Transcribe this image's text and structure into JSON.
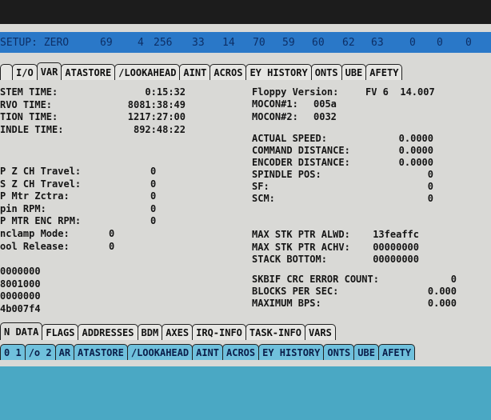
{
  "status_bar": {
    "label": "SETUP: ZERO",
    "values": [
      "69",
      "4",
      "256",
      "33",
      "14",
      "70",
      "59",
      "60",
      "62",
      "63",
      "0",
      "0",
      "0"
    ]
  },
  "top_tabs": [
    "",
    "I/O",
    "VAR",
    "ATASTORE",
    "/LOOKAHEAD",
    "AINT",
    "ACROS",
    "EY HISTORY",
    "ONTS",
    "UBE",
    "AFETY"
  ],
  "top_tabs_active": "VAR",
  "left": {
    "times": [
      {
        "label": "STEM TIME:",
        "value": "0:15:32"
      },
      {
        "label": "RVO TIME:",
        "value": "8081:38:49"
      },
      {
        "label": "TION TIME:",
        "value": "1217:27:00"
      },
      {
        "label": "INDLE TIME:",
        "value": "892:48:22"
      }
    ],
    "travel": [
      {
        "label": "P Z CH Travel:",
        "value": "0"
      },
      {
        "label": "S Z CH Travel:",
        "value": "0"
      },
      {
        "label": "P Mtr Zctra:",
        "value": "0"
      },
      {
        "label": "pin RPM:",
        "value": "0"
      },
      {
        "label": "P MTR ENC RPM:",
        "value": "0"
      }
    ],
    "modes": [
      {
        "label": "nclamp Mode:",
        "value": "0"
      },
      {
        "label": "ool Release:",
        "value": "0"
      }
    ],
    "hex": [
      "0000000",
      "8001000",
      "0000000",
      "4b007f4"
    ]
  },
  "right": {
    "version": {
      "label": "Floppy Version:",
      "value": "FV 6  14.007"
    },
    "mocon": [
      {
        "label": "MOCON#1:",
        "value": "005a"
      },
      {
        "label": "MOCON#2:",
        "value": "0032"
      }
    ],
    "motion": [
      {
        "label": "ACTUAL SPEED:",
        "value": "0.0000"
      },
      {
        "label": "COMMAND DISTANCE:",
        "value": "0.0000"
      },
      {
        "label": "ENCODER DISTANCE:",
        "value": "0.0000"
      },
      {
        "label": "SPINDLE POS:",
        "value": "0"
      },
      {
        "label": "SF:",
        "value": "0"
      },
      {
        "label": "SCM:",
        "value": "0"
      }
    ],
    "stack": [
      {
        "label": "MAX STK PTR ALWD:",
        "value": "13feaffc"
      },
      {
        "label": "MAX STK PTR ACHV:",
        "value": "00000000"
      },
      {
        "label": "STACK BOTTOM:",
        "value": "00000000"
      }
    ],
    "skbif": [
      {
        "label": "SKBIF CRC ERROR COUNT:",
        "value": "0"
      },
      {
        "label": "BLOCKS PER SEC:",
        "value": "0.000"
      },
      {
        "label": "MAXIMUM BPS:",
        "value": "0.000"
      }
    ]
  },
  "sub_tabs": [
    "N DATA",
    "FLAGS",
    "ADDRESSES",
    "BDM",
    "AXES",
    "IRQ-INFO",
    "TASK-INFO",
    "VARS"
  ],
  "sub_tabs_active": "N DATA",
  "lower_tabs": [
    "0 1",
    "/o 2",
    "AR",
    "ATASTORE",
    "/LOOKAHEAD",
    "AINT",
    "ACROS",
    "EY HISTORY",
    "ONTS",
    "UBE",
    "AFETY"
  ]
}
